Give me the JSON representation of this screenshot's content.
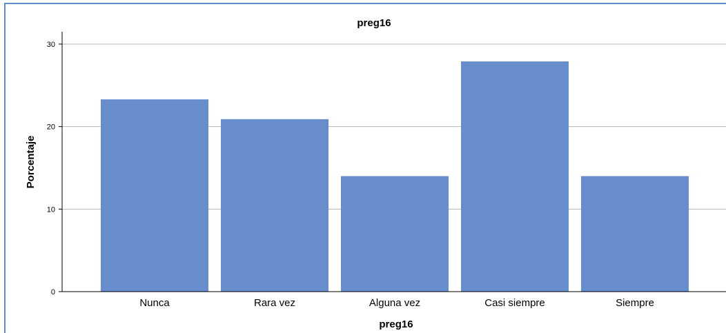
{
  "chart_data": {
    "type": "bar",
    "title": "preg16",
    "xlabel": "preg16",
    "ylabel": "Porcentaje",
    "categories": [
      "Nunca",
      "Rara vez",
      "Alguna vez",
      "Casi siempre",
      "Siempre"
    ],
    "values": [
      23.3,
      20.9,
      14.0,
      27.9,
      14.0
    ],
    "ylim": [
      0,
      31.5
    ],
    "yticks": [
      "0",
      "10",
      "20",
      "30"
    ],
    "grid": true,
    "bar_color": "#688dcc",
    "frame_color": "#5b8fc7"
  }
}
